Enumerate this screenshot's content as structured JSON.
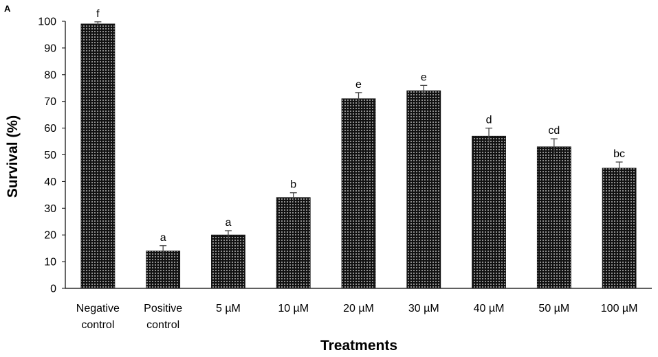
{
  "panel_label": "A",
  "colors": {
    "bar": "#111111",
    "dot": "#e8e8e8",
    "axis": "#000000",
    "error": "#444444"
  },
  "chart_data": {
    "type": "bar",
    "title": "",
    "xlabel": "Treatments",
    "ylabel": "Survival (%)",
    "ylim": [
      0,
      100
    ],
    "yticks": [
      0,
      10,
      20,
      30,
      40,
      50,
      60,
      70,
      80,
      90,
      100
    ],
    "grid": false,
    "categories": [
      [
        "Negative",
        "control"
      ],
      [
        "Positive",
        "control"
      ],
      [
        "5 µM"
      ],
      [
        "10 µM"
      ],
      [
        "20 µM"
      ],
      [
        "30 µM"
      ],
      [
        "40 µM"
      ],
      [
        "50 µM"
      ],
      [
        "100 µM"
      ]
    ],
    "values": [
      99,
      14,
      20,
      34,
      71,
      74,
      57,
      53,
      45
    ],
    "errors": [
      0.8,
      2,
      1.6,
      1.8,
      2.3,
      2,
      3,
      3,
      2.3
    ],
    "significance": [
      "f",
      "a",
      "a",
      "b",
      "e",
      "e",
      "d",
      "cd",
      "bc"
    ]
  }
}
